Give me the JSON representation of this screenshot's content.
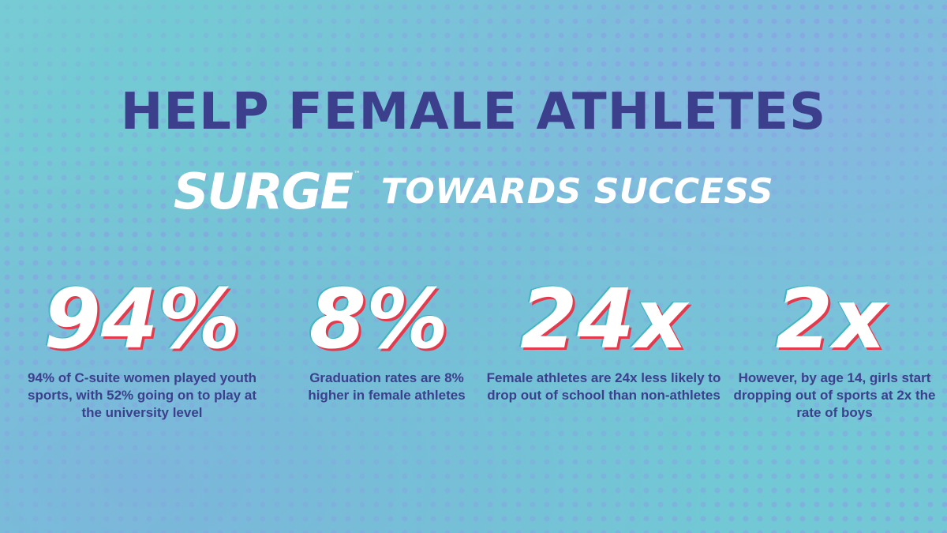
{
  "headline": "HELP FEMALE ATHLETES",
  "logo": {
    "text": "SURGE",
    "trademark": "™"
  },
  "tagline": "TOWARDS SUCCESS",
  "stats": [
    {
      "value": "94%",
      "description": "94% of C-suite women played youth sports, with 52% going on to play at the university level"
    },
    {
      "value": "8%",
      "description": "Graduation rates are 8% higher in female athletes"
    },
    {
      "value": "24x",
      "description": "Female athletes are 24x less likely to drop out of school than non-athletes"
    },
    {
      "value": "2x",
      "description": "However, by age 14, girls start dropping out of sports at 2x the rate of boys"
    }
  ],
  "colors": {
    "background": "#71c9d3",
    "headline": "#3b3f8c",
    "accent_red": "#e43a4d",
    "white": "#ffffff"
  }
}
